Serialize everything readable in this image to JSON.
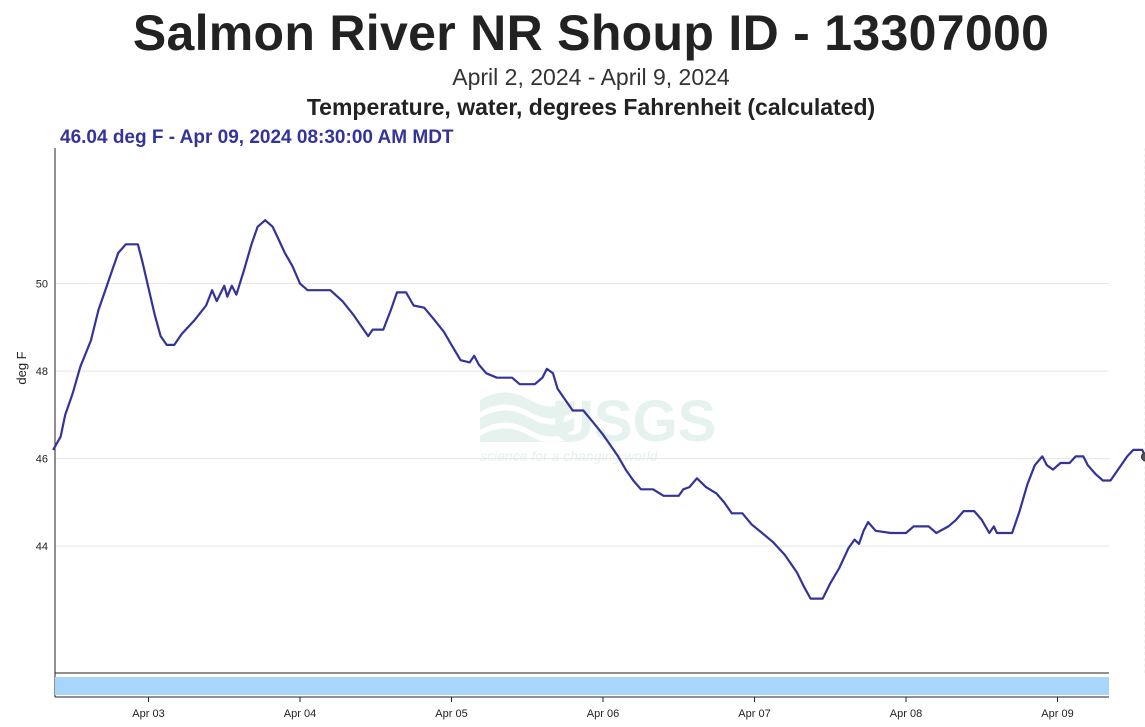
{
  "header": {
    "title": "Salmon River NR Shoup ID - 13307000",
    "date_range": "April 2, 2024 - April 9, 2024",
    "parameter": "Temperature, water, degrees Fahrenheit (calculated)",
    "readout": "46.04 deg F - Apr 09, 2024 08:30:00 AM MDT"
  },
  "watermark": {
    "logo_text": "USGS",
    "tagline": "science for a changing world"
  },
  "colors": {
    "series": "#333399",
    "brush": "#a8d6fb",
    "grid": "#e5e5e5",
    "axis": "#222222"
  },
  "chart_data": {
    "type": "line",
    "ylabel": "deg F",
    "xlabel": "",
    "x_unit": "days since Apr 02, 2024 00:00",
    "xlim": [
      0.37,
      7.35
    ],
    "ylim": [
      41.1,
      53.1
    ],
    "yticks": [
      44,
      46,
      48,
      50
    ],
    "xticks": [
      {
        "label": "Apr 03",
        "x": 1
      },
      {
        "label": "Apr 04",
        "x": 2
      },
      {
        "label": "Apr 05",
        "x": 3
      },
      {
        "label": "Apr 06",
        "x": 4
      },
      {
        "label": "Apr 07",
        "x": 5
      },
      {
        "label": "Apr 08",
        "x": 6
      },
      {
        "label": "Apr 09",
        "x": 7
      }
    ],
    "series": [
      {
        "name": "",
        "points": [
          [
            0.37,
            46.2
          ],
          [
            0.42,
            46.5
          ],
          [
            0.45,
            47.0
          ],
          [
            0.5,
            47.5
          ],
          [
            0.55,
            48.1
          ],
          [
            0.62,
            48.7
          ],
          [
            0.67,
            49.4
          ],
          [
            0.72,
            49.9
          ],
          [
            0.76,
            50.3
          ],
          [
            0.8,
            50.7
          ],
          [
            0.85,
            50.9
          ],
          [
            0.93,
            50.9
          ],
          [
            0.96,
            50.5
          ],
          [
            1.0,
            49.9
          ],
          [
            1.04,
            49.3
          ],
          [
            1.08,
            48.8
          ],
          [
            1.12,
            48.6
          ],
          [
            1.17,
            48.6
          ],
          [
            1.22,
            48.85
          ],
          [
            1.3,
            49.15
          ],
          [
            1.38,
            49.5
          ],
          [
            1.42,
            49.85
          ],
          [
            1.45,
            49.6
          ],
          [
            1.5,
            49.95
          ],
          [
            1.52,
            49.7
          ],
          [
            1.55,
            49.95
          ],
          [
            1.58,
            49.75
          ],
          [
            1.63,
            50.3
          ],
          [
            1.68,
            50.9
          ],
          [
            1.72,
            51.3
          ],
          [
            1.77,
            51.45
          ],
          [
            1.82,
            51.3
          ],
          [
            1.86,
            51.0
          ],
          [
            1.9,
            50.7
          ],
          [
            1.95,
            50.4
          ],
          [
            2.0,
            50.0
          ],
          [
            2.05,
            49.85
          ],
          [
            2.2,
            49.85
          ],
          [
            2.28,
            49.6
          ],
          [
            2.35,
            49.3
          ],
          [
            2.4,
            49.05
          ],
          [
            2.45,
            48.8
          ],
          [
            2.48,
            48.95
          ],
          [
            2.55,
            48.95
          ],
          [
            2.6,
            49.4
          ],
          [
            2.64,
            49.8
          ],
          [
            2.7,
            49.8
          ],
          [
            2.75,
            49.5
          ],
          [
            2.82,
            49.45
          ],
          [
            2.88,
            49.2
          ],
          [
            2.95,
            48.9
          ],
          [
            3.0,
            48.6
          ],
          [
            3.06,
            48.25
          ],
          [
            3.12,
            48.2
          ],
          [
            3.15,
            48.35
          ],
          [
            3.18,
            48.15
          ],
          [
            3.23,
            47.95
          ],
          [
            3.3,
            47.85
          ],
          [
            3.4,
            47.85
          ],
          [
            3.45,
            47.7
          ],
          [
            3.55,
            47.7
          ],
          [
            3.6,
            47.85
          ],
          [
            3.63,
            48.05
          ],
          [
            3.67,
            47.95
          ],
          [
            3.7,
            47.6
          ],
          [
            3.75,
            47.35
          ],
          [
            3.8,
            47.1
          ],
          [
            3.87,
            47.1
          ],
          [
            3.93,
            46.85
          ],
          [
            4.0,
            46.55
          ],
          [
            4.05,
            46.3
          ],
          [
            4.1,
            46.05
          ],
          [
            4.15,
            45.75
          ],
          [
            4.2,
            45.5
          ],
          [
            4.25,
            45.3
          ],
          [
            4.33,
            45.3
          ],
          [
            4.4,
            45.15
          ],
          [
            4.5,
            45.15
          ],
          [
            4.53,
            45.3
          ],
          [
            4.57,
            45.35
          ],
          [
            4.62,
            45.55
          ],
          [
            4.68,
            45.35
          ],
          [
            4.75,
            45.2
          ],
          [
            4.8,
            45.0
          ],
          [
            4.85,
            44.75
          ],
          [
            4.92,
            44.75
          ],
          [
            4.98,
            44.5
          ],
          [
            5.05,
            44.3
          ],
          [
            5.12,
            44.1
          ],
          [
            5.2,
            43.8
          ],
          [
            5.28,
            43.4
          ],
          [
            5.33,
            43.05
          ],
          [
            5.37,
            42.8
          ],
          [
            5.45,
            42.8
          ],
          [
            5.5,
            43.15
          ],
          [
            5.56,
            43.5
          ],
          [
            5.62,
            43.95
          ],
          [
            5.66,
            44.15
          ],
          [
            5.69,
            44.05
          ],
          [
            5.72,
            44.35
          ],
          [
            5.75,
            44.55
          ],
          [
            5.8,
            44.35
          ],
          [
            5.9,
            44.3
          ],
          [
            6.0,
            44.3
          ],
          [
            6.05,
            44.45
          ],
          [
            6.15,
            44.45
          ],
          [
            6.2,
            44.3
          ],
          [
            6.28,
            44.45
          ],
          [
            6.33,
            44.6
          ],
          [
            6.38,
            44.8
          ],
          [
            6.45,
            44.8
          ],
          [
            6.5,
            44.6
          ],
          [
            6.55,
            44.3
          ],
          [
            6.58,
            44.45
          ],
          [
            6.6,
            44.3
          ],
          [
            6.7,
            44.3
          ],
          [
            6.75,
            44.8
          ],
          [
            6.8,
            45.4
          ],
          [
            6.85,
            45.85
          ],
          [
            6.9,
            46.05
          ],
          [
            6.93,
            45.85
          ],
          [
            6.97,
            45.75
          ],
          [
            7.02,
            45.9
          ],
          [
            7.08,
            45.9
          ],
          [
            7.12,
            46.05
          ],
          [
            7.17,
            46.05
          ],
          [
            7.2,
            45.85
          ],
          [
            7.25,
            45.65
          ],
          [
            7.3,
            45.5
          ],
          [
            7.35,
            45.5
          ],
          [
            7.38,
            45.65
          ],
          [
            7.42,
            45.85
          ],
          [
            7.46,
            46.05
          ],
          [
            7.5,
            46.2
          ],
          [
            7.56,
            46.2
          ],
          [
            7.58,
            46.04
          ]
        ]
      }
    ],
    "current_point": {
      "x": 7.58,
      "y": 46.04
    }
  }
}
